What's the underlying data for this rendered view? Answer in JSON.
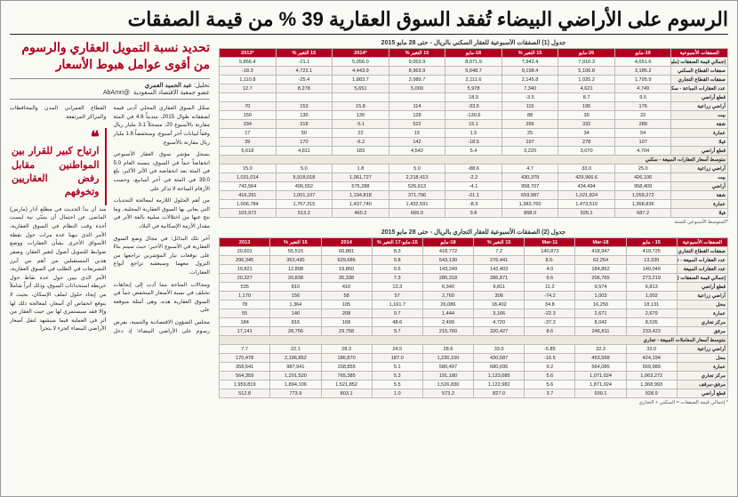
{
  "headline": "الرسوم على الأراضي البيضاء تُفقد السوق العقارية 39 % من قيمة الصفقات",
  "subhead": "تحديد نسبة التمويل العقاري والرسوم من أقوى عوامل هبوط الأسعار",
  "byline": {
    "label": "تحليل:",
    "name": "عبد الحميد العمري",
    "affiliation": "عضو جمعية الاقتصاد السعودية",
    "handle": "@AbAmri"
  },
  "body_paragraphs": [
    "سجّل السوق العقاري المحلي أدنى قيمة لصفقاته طوال 2015، متدنياً 4.6 في المئة مقارنة بالأسبوع 20، مسجلاً 3.1 مليار ريال وفقاً لبيانات آخر أسبوع، ومنخفضاً 1.8 مليار ريال مقارنة بالأسبوع.",
    "يسجل مؤشر سوق العقار الأسبوعي انخفاضاً جماً في السوق، بنسبه العام 5.0 في المئة بعد انخفاضه في الأثر الأكبر، بلغ 39.0 في المئة في آخر أسابيع، وحسب الأرقام المتاحة لا تذكر على",
    "من أهم الحلول اللازمة لمعالجة التحديات التي يعاني بها السوق العقارية المحلية، وما نتج عنها من اختلالات سلبية بالغة الأثر في مقدار الأزمة الإسكانية في البلاد.",
    "آخر تلك البدائل؛ في مجال وضع السوق العقارية في الأسبوع الأخير؛ حيث سيتم بناءً على توقعات تيار المؤشرين تراجعها من النزول معهما وسيعقبه تراجع أنواع العقارات.",
    "ومجالات المتاحة مما أدت إلى إيجاهات تختلف في نسبة الأسعار المنخفض جماً في السوق العقارية هذه، وهي أمثلة متوقعة على",
    "مجلس الشؤون الاقتصادية والتنمية، بفرض رسوم على الأراضي البيضاء؛ إذ دخل القطاع العمراني المدن والمحافظات والمراكز المرتفعة.",
    "منذ أن بدأ الحديث في مطلع آذار (مارس) الماضي عن احتمال أن يتبنّى نية ليست أخذة وقت النظام في السوق العقارية، الأمر الذي نبهنا عدة مرات حول نقطة الأسواق الأخرى بشأن العقارات ووضع ضوابط للتمويل أصول لتغير العقار، وصفر هذين المستقبلين من أهم من أبرز التشريعات في الطلب في السوق العقارية، الأمر الذي يبين حول عدة نقاط حول خريطة استحداثات السوق، وذلك أثراً شاملاً من إيجاد حلول لملف الإسكان، بحيث لا يتوقع انخفاض أي أسعار، لمعالجة ذلك لها وإلا فقد سيستمري لها من حيث العقار من أثر في العملية فيما سيشهد لنقل أسعار الأراضي البيضاء كجزء لا يتجزأ"
  ],
  "pullquote": "ارتياح كبير للقرار بين المواطنين مقابل رفض العقاريين وتخوفهم",
  "table1": {
    "caption": "جدول (1) الصفقات الأسبوعية للعقار السكني بالريال - حتى 28 مايو 2015",
    "columns": [
      "الصفقات الأسبوعية",
      "19-مايو",
      "26-مايو",
      "15 التغير %",
      "18-مايو",
      "15 التغير %",
      "*2014",
      "15 التغير %",
      "*2013"
    ],
    "rows_top": [
      [
        "إجمالي قيمة الصفقات (مليون ريال)",
        "4,651.6",
        "7,910.3",
        "7,942.4",
        "8,071.9",
        "9,053.9",
        "5,056.0",
        "21.1-",
        "5,856.4",
        "2,102.2",
        "19.0-",
        "8,378.9",
        "9,177.0"
      ],
      [
        "صفقات القطاع السكني",
        "3,185.2",
        "5,106.8",
        "9,198.4",
        "5,648.7",
        "8,963.9",
        "4,443.9",
        "4,723.1",
        "18.3-",
        "4,109.1",
        "6,014.1",
        "9,327.5"
      ],
      [
        "صفقات القطاع التجاري",
        "1,795.9",
        "1,025.2",
        "2,145.8",
        "2,111.6",
        "2,089.7",
        "1,883.7",
        "25.4-",
        "1,110.8",
        "2,285.1",
        "2,981.8",
        "3,162.9"
      ],
      [
        "عدد العقارات المباعة - سكني",
        "4,749",
        "4,621",
        "7,340",
        "5,978",
        "5,000",
        "5,651",
        "8,278",
        "12.7",
        "6,435",
        "3,973",
        "3,406"
      ],
      [
        "قطع أراضي",
        "9.5",
        "8.7",
        "3.5-",
        "18.9"
      ],
      [
        "أراضي زراعية",
        "176",
        "195",
        "115",
        "33.5-",
        "114",
        "15.8",
        "153",
        "70",
        "70",
        "132",
        "150",
        "169",
        "61"
      ],
      [
        "بيت",
        "22",
        "39",
        "88",
        "130.6-",
        "128",
        "130",
        "130",
        "150",
        "84",
        "52",
        "32",
        "64"
      ],
      [
        "شقة",
        "288",
        "332",
        "266",
        "15.1",
        "522",
        "5.1-",
        "318",
        "334",
        "353",
        "258",
        "362",
        "761"
      ],
      [
        "عمارة",
        "54",
        "34",
        "25",
        "1.5",
        "15",
        "22",
        "50",
        "17",
        "29",
        "29"
      ],
      [
        "فيلا",
        "107",
        "278",
        "197",
        "18.5-",
        "142",
        "6.2-",
        "170",
        "39",
        "34",
        "26",
        "24",
        "20"
      ],
      [
        "قطع أراضي",
        "4,704",
        "3,070",
        "3,220",
        "5.4",
        "4,542",
        "183",
        "4,811",
        "5,618",
        "6,379",
        "5,011",
        "4,620"
      ]
    ],
    "section2_title": "متوسط أسعار العقارات المبيعة - سكني",
    "rows_bottom": [
      [
        "أراضي زراعية",
        "25.0",
        "33.0",
        "4.7",
        "88.6-",
        "5.0",
        "1.8",
        "5.0",
        "15.0"
      ],
      [
        "بيت",
        "426,106",
        "429,966.6",
        "430,379",
        "2.2-",
        "2,218,413",
        "1,061,727",
        "5,918,018",
        "1,031,014",
        "573.0",
        "1,096,007",
        "1,078,332",
        "73.1",
        "1,065,008"
      ],
      [
        "أراضي",
        "958,409",
        "434,494",
        "958,707",
        "4.1-",
        "526,613",
        "575,288",
        "406,552",
        "742,564",
        "989,229",
        "533,625",
        "943,362"
      ],
      [
        "شقة",
        "1,059,272",
        "1,021,824",
        "659,987",
        "21.1-",
        "371,796",
        "1,194,818",
        "1,001,107",
        "416,291",
        "322,899",
        "983,108",
        "925,229"
      ],
      [
        "عمارة",
        "1,368,836",
        "1,473,510",
        "1,383,760",
        "8.3-",
        "1,432,591",
        "1,437,740",
        "1,767,315",
        "1,006,784",
        "1,182,976",
        "1,208,369",
        "1,280,889"
      ],
      [
        "فيلا",
        "687.2",
        "926.1",
        "868.0",
        "9.8",
        "666.0",
        "460.2",
        "513.2",
        "103,972"
      ]
    ],
    "footnote": "*المتوسط الأسبوعي للسنة"
  },
  "table2": {
    "caption": "جدول (2) الصفقات الأسبوعية للعقار التجاري بالريال - حتى 28 مايو 2015",
    "columns": [
      "الصفقات الأسبوعية",
      "15 - مايو",
      "Mar-18",
      "Mar-11",
      "15 التغير %",
      "18-مايو",
      "15-مايو-17 التغير %",
      "2014",
      "15 التغير %",
      "2013"
    ],
    "rows_top": [
      [
        "صفقات القطاع التجاري (مليون ريال)",
        "419,725",
        "418,947",
        "140,873",
        "7.2",
        "418,772",
        "8.3",
        "60,881",
        "55,515",
        "20,601",
        "308,110"
      ],
      [
        "عدد العقارات المبيعة - تجاري",
        "13,339",
        "62,254",
        "-8.5",
        "276,441",
        "543,130",
        "9.8",
        "629,686",
        "363,430",
        "296,345",
        "165,299",
        "123,477"
      ],
      [
        "عدد العقارات المبيعة",
        "140,049",
        "184,862",
        "4.0",
        "142,403",
        "143,249",
        "0.6",
        "19,860",
        "12,808",
        "19,821",
        "9,772",
        "8,894"
      ],
      [
        "إجمالي قيمة الصفقات (مليون ريال)",
        "273,219",
        "206,765",
        "6.6",
        "286,871",
        "286,318",
        "7.3",
        "35,338",
        "20,838",
        "20,327",
        "25,198",
        "25,063"
      ],
      [
        "قطع أراضي",
        "6,813",
        "9,574",
        "11.2",
        "9,811",
        "6,340",
        "13.3",
        "410",
        "810",
        "535",
        "497",
        "420"
      ],
      [
        "أراضي زراعية",
        "1,002",
        "1,003",
        "74.2-",
        "306",
        "2,760",
        "57",
        "58",
        "156",
        "1,170",
        "1,859",
        "826"
      ],
      [
        "محل",
        "18,131",
        "16,250",
        "34.8",
        "18,402",
        "26,086",
        "1,161.7",
        "105",
        "1,364",
        "78",
        "1,026",
        "725"
      ],
      [
        "عمارة",
        "2,679",
        "2,671",
        "22.3-",
        "3,166",
        "1,444",
        "0.7",
        "208",
        "140",
        "55",
        "86",
        "83"
      ],
      [
        "مركز تجاري",
        "8,535",
        "8,042",
        "37.3-",
        "4,720",
        "2,499",
        "48.6",
        "168",
        "816",
        "184",
        "315",
        "192"
      ],
      [
        "مرفق",
        "233,423",
        "246,811",
        "8.6",
        "320,427",
        "215,760",
        "9.7",
        "29,758",
        "28,756",
        "17,141",
        "21,428"
      ]
    ],
    "section2_title": "متوسط أسعار المعاملات المبيعة - تجاري",
    "rows_bottom": [
      [
        "أراضي زراعية",
        "33.0",
        "32.3",
        "5.85-",
        "33.0",
        "28.6",
        "24.5",
        "28.3",
        "22.1",
        "7.7"
      ],
      [
        "محل",
        "424,194",
        "453,568",
        "16.5-",
        "430,587",
        "1,230,150",
        "187.0",
        "186,870",
        "2,196,852",
        "170,478",
        "1,129,191"
      ],
      [
        "عمارة",
        "569,989",
        "564,085",
        "9.2",
        "680,695",
        "580,497",
        "5.1",
        "158,855",
        "987,941",
        "358,541",
        "519,771",
        "511,969"
      ],
      [
        "مركز تجاري",
        "1,063,272",
        "1,071,024",
        "5.6",
        "1,123,085",
        "191,180",
        "5.3",
        "765,385",
        "1,201,520",
        "564,359",
        "885,187"
      ],
      [
        "مرفق-مرقف",
        "1,368,993",
        "1,871,024",
        "5.6",
        "1,122,982",
        "1,526,830",
        "5.5",
        "1,521,852",
        "1,894,106",
        "1,959,819",
        "3,218,342"
      ],
      [
        "قطع أراضي",
        "928.9",
        "930.1",
        "3.7",
        "827.0",
        "573.2",
        "1.0",
        "803.1",
        "773.9",
        "512.8",
        "405.3"
      ]
    ],
    "footnote": "* إجمالي قيمة الصفقات = السكني + التجاري"
  },
  "brand": {
    "accent": "#b00020"
  }
}
